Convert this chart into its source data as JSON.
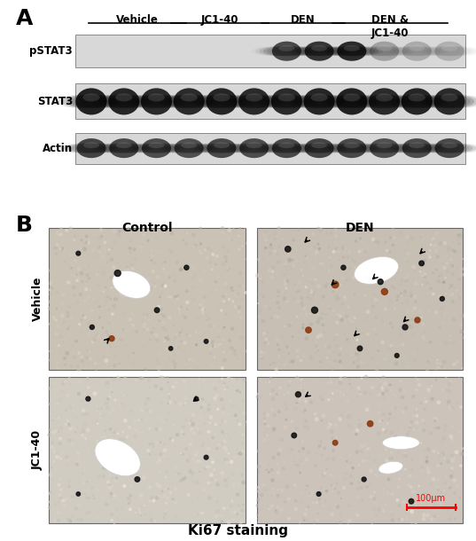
{
  "panel_A_label": "A",
  "panel_B_label": "B",
  "group_labels": [
    "Vehicle",
    "JC1-40",
    "DEN",
    "DEN &\nJC1-40"
  ],
  "row_labels": [
    "pSTAT3",
    "STAT3",
    "Actin"
  ],
  "col_labels_B": [
    "Control",
    "DEN"
  ],
  "row_labels_B": [
    "Vehicle",
    "JC1-40"
  ],
  "bottom_label": "Ki67 staining",
  "scale_bar_label": "100μm",
  "bg_color": "#ffffff",
  "blot_bg_light": "#dcdcdc",
  "blot_bg_row": "#e0e0e0",
  "n_lanes": 12,
  "pstat3_intensities": [
    0.0,
    0.0,
    0.0,
    0.0,
    0.0,
    0.0,
    0.72,
    0.82,
    0.88,
    0.28,
    0.22,
    0.2
  ],
  "stat3_intensities": [
    0.92,
    0.9,
    0.88,
    0.88,
    0.9,
    0.88,
    0.88,
    0.9,
    0.92,
    0.88,
    0.9,
    0.88
  ],
  "actin_intensities": [
    0.75,
    0.72,
    0.7,
    0.68,
    0.72,
    0.7,
    0.72,
    0.74,
    0.72,
    0.68,
    0.7,
    0.72
  ],
  "tissue_color_vc": [
    0.79,
    0.76,
    0.71
  ],
  "tissue_color_vd": [
    0.78,
    0.75,
    0.7
  ],
  "tissue_color_jc": [
    0.82,
    0.8,
    0.76
  ],
  "tissue_color_jd": [
    0.8,
    0.77,
    0.73
  ]
}
